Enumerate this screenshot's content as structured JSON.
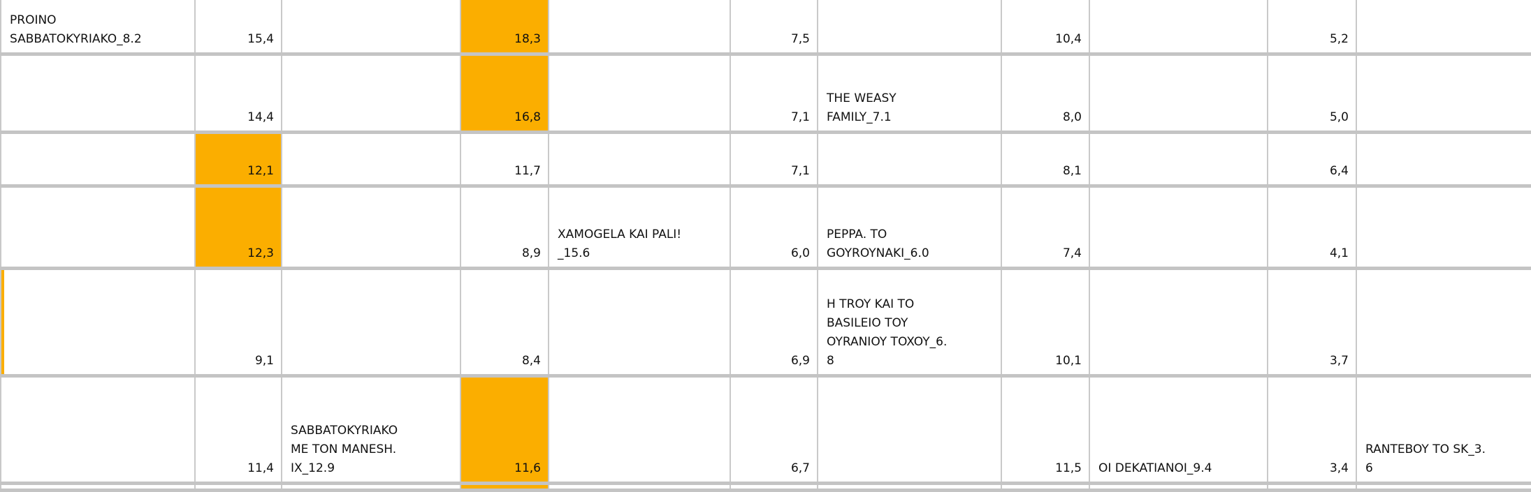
{
  "sheet": {
    "highlight_color": "#fbae00",
    "grid_color": "#c9c9c9",
    "rows": [
      {
        "cells": [
          "PROINO\nSABBATOKYRIAKO_8.2",
          "15,4",
          "",
          "18,3",
          "",
          "7,5",
          "",
          "10,4",
          "",
          "5,2",
          ""
        ],
        "highlighted": [
          3
        ]
      },
      {
        "cells": [
          "",
          "14,4",
          "",
          "16,8",
          "",
          "7,1",
          "THE WEASY\nFAMILY_7.1",
          "8,0",
          "",
          "5,0",
          ""
        ],
        "highlighted": [
          3
        ]
      },
      {
        "cells": [
          "",
          "12,1",
          "",
          "11,7",
          "",
          "7,1",
          "",
          "8,1",
          "",
          "6,4",
          ""
        ],
        "highlighted": [
          1
        ]
      },
      {
        "cells": [
          "",
          "12,3",
          "",
          "8,9",
          "XAMOGELA KAI PALI!\n_15.6",
          "6,0",
          "PEPPA. TO\nGOYROYNAKI_6.0",
          "7,4",
          "",
          "4,1",
          ""
        ],
        "highlighted": [
          1
        ]
      },
      {
        "cells": [
          "",
          "9,1",
          "",
          "8,4",
          "",
          "6,9",
          "H TROY KAI TO\nBASILEIO TOY\nOYRANIOY TOXOY_6.\n8",
          "10,1",
          "",
          "3,7",
          ""
        ],
        "highlighted": []
      },
      {
        "cells": [
          "",
          "11,4",
          "SABBATOKYRIAKO\nME TON MANESH.\nIX_12.9",
          "11,6",
          "",
          "6,7",
          "",
          "11,5",
          "OI DEKATIANOI_9.4",
          "3,4",
          "RANTEBOY TO SK_3.\n6"
        ],
        "highlighted": [
          3
        ]
      },
      {
        "cells": [
          "",
          "",
          "",
          "",
          "",
          "",
          "",
          "",
          "",
          "",
          ""
        ],
        "highlighted": [
          3
        ]
      }
    ]
  }
}
